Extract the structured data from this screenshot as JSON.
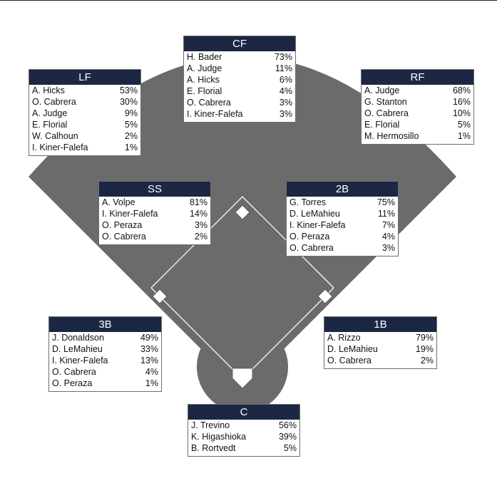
{
  "colors": {
    "field": "#6b6b6b",
    "header": "#1c2743",
    "base": "#ffffff",
    "line": "#ffffff"
  },
  "positions": {
    "cf": {
      "title": "CF",
      "players": [
        {
          "name": "H. Bader",
          "pct": "73%"
        },
        {
          "name": "A. Judge",
          "pct": "11%"
        },
        {
          "name": "A. Hicks",
          "pct": "6%"
        },
        {
          "name": "E. Florial",
          "pct": "4%"
        },
        {
          "name": "O. Cabrera",
          "pct": "3%"
        },
        {
          "name": "I. Kiner-Falefa",
          "pct": "3%"
        }
      ]
    },
    "lf": {
      "title": "LF",
      "players": [
        {
          "name": "A. Hicks",
          "pct": "53%"
        },
        {
          "name": "O. Cabrera",
          "pct": "30%"
        },
        {
          "name": "A. Judge",
          "pct": "9%"
        },
        {
          "name": "E. Florial",
          "pct": "5%"
        },
        {
          "name": "W. Calhoun",
          "pct": "2%"
        },
        {
          "name": "I. Kiner-Falefa",
          "pct": "1%"
        }
      ]
    },
    "rf": {
      "title": "RF",
      "players": [
        {
          "name": "A. Judge",
          "pct": "68%"
        },
        {
          "name": "G. Stanton",
          "pct": "16%"
        },
        {
          "name": "O. Cabrera",
          "pct": "10%"
        },
        {
          "name": "E. Florial",
          "pct": "5%"
        },
        {
          "name": "M. Hermosillo",
          "pct": "1%"
        }
      ]
    },
    "ss": {
      "title": "SS",
      "players": [
        {
          "name": "A. Volpe",
          "pct": "81%"
        },
        {
          "name": "I. Kiner-Falefa",
          "pct": "14%"
        },
        {
          "name": "O. Peraza",
          "pct": "3%"
        },
        {
          "name": "O. Cabrera",
          "pct": "2%"
        }
      ]
    },
    "2b": {
      "title": "2B",
      "players": [
        {
          "name": "G. Torres",
          "pct": "75%"
        },
        {
          "name": "D. LeMahieu",
          "pct": "11%"
        },
        {
          "name": "I. Kiner-Falefa",
          "pct": "7%"
        },
        {
          "name": "O. Peraza",
          "pct": "4%"
        },
        {
          "name": "O. Cabrera",
          "pct": "3%"
        }
      ]
    },
    "3b": {
      "title": "3B",
      "players": [
        {
          "name": "J. Donaldson",
          "pct": "49%"
        },
        {
          "name": "D. LeMahieu",
          "pct": "33%"
        },
        {
          "name": "I. Kiner-Falefa",
          "pct": "13%"
        },
        {
          "name": "O. Cabrera",
          "pct": "4%"
        },
        {
          "name": "O. Peraza",
          "pct": "1%"
        }
      ]
    },
    "1b": {
      "title": "1B",
      "players": [
        {
          "name": "A. Rizzo",
          "pct": "79%"
        },
        {
          "name": "D. LeMahieu",
          "pct": "19%"
        },
        {
          "name": "O. Cabrera",
          "pct": "2%"
        }
      ]
    },
    "c": {
      "title": "C",
      "players": [
        {
          "name": "J. Trevino",
          "pct": "56%"
        },
        {
          "name": "K. Higashioka",
          "pct": "39%"
        },
        {
          "name": "B. Rortvedt",
          "pct": "5%"
        }
      ]
    }
  }
}
